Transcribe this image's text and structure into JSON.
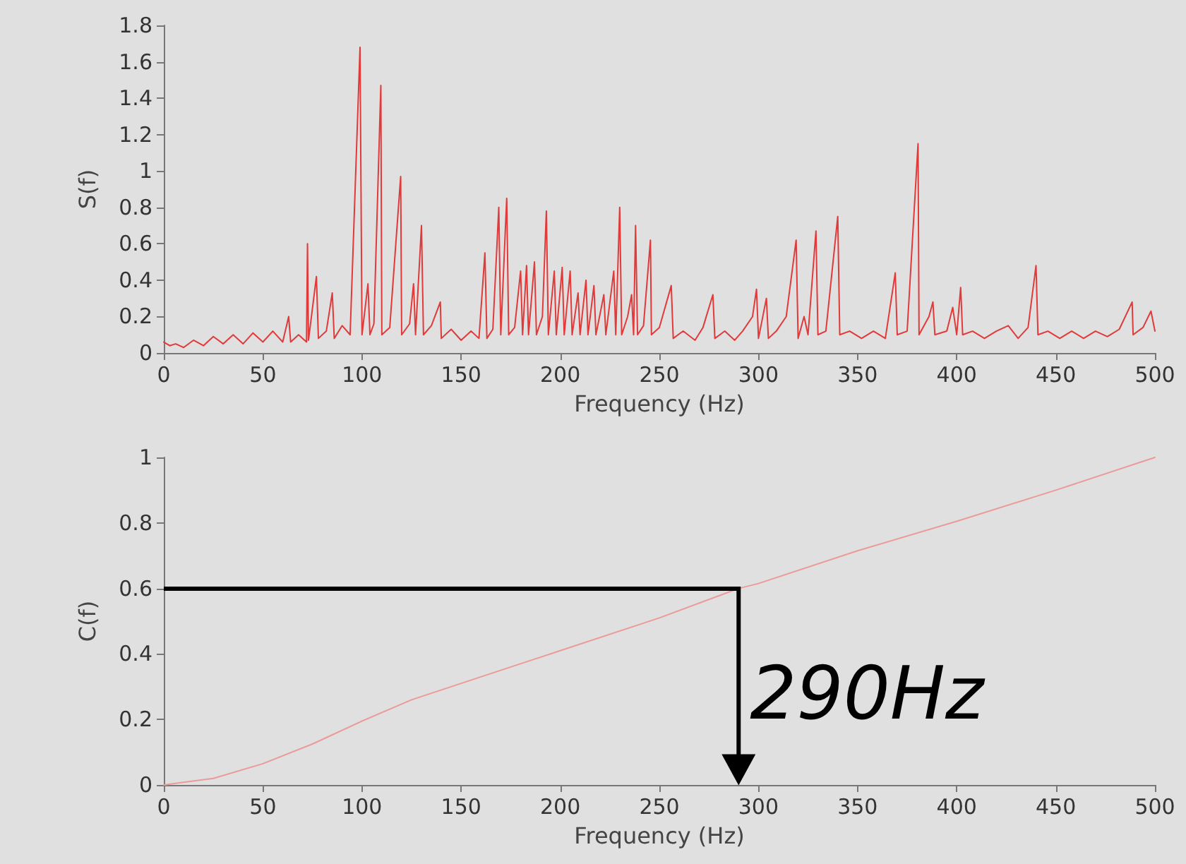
{
  "chart_data": [
    {
      "type": "line",
      "ylabel": "S(f)",
      "xlabel": "Frequency (Hz)",
      "xlim": [
        0,
        500
      ],
      "xticks": [
        0,
        50,
        100,
        150,
        200,
        250,
        300,
        350,
        400,
        450,
        500
      ],
      "ylim": [
        0,
        1.8
      ],
      "yticks": [
        0,
        0.2,
        0.4,
        0.6,
        0.8,
        1,
        1.2,
        1.4,
        1.6,
        1.8
      ],
      "grid": false,
      "marker": "none",
      "x": [
        0,
        3,
        6,
        10,
        15,
        20,
        25,
        30,
        35,
        40,
        45,
        50,
        55,
        60,
        63,
        64,
        68,
        72,
        72.5,
        73,
        77,
        78,
        82,
        85,
        86,
        90,
        94,
        99,
        100,
        103,
        104,
        106,
        109.5,
        110,
        114,
        119.5,
        120,
        124,
        126,
        127,
        130,
        131,
        135,
        139.5,
        140,
        145,
        150,
        155,
        159,
        162,
        163,
        166,
        169,
        170,
        173,
        174,
        177,
        180,
        181,
        183,
        184,
        187,
        188,
        191,
        193,
        194,
        197,
        198,
        201,
        202,
        205,
        206,
        209,
        210,
        213,
        214,
        217,
        218,
        222,
        223,
        227,
        228,
        230,
        231,
        234,
        236,
        237,
        238,
        239,
        242,
        245.5,
        246,
        250,
        256,
        257,
        262,
        268,
        272,
        277,
        278,
        283,
        288,
        292,
        297,
        299,
        300,
        304,
        305,
        309,
        314,
        319,
        320,
        323,
        325,
        329,
        330,
        334,
        340,
        341,
        346,
        352,
        358,
        364,
        369,
        370,
        375,
        380.5,
        381,
        386,
        388,
        389,
        395,
        398,
        400,
        402,
        403,
        408,
        414,
        420,
        426,
        431,
        436,
        440,
        441,
        446,
        452,
        458,
        464,
        470,
        476,
        482,
        488.5,
        489,
        494,
        498,
        500
      ],
      "series": [
        {
          "color": "#e03a3a",
          "values": [
            0.06,
            0.04,
            0.05,
            0.03,
            0.07,
            0.04,
            0.09,
            0.05,
            0.1,
            0.05,
            0.11,
            0.06,
            0.12,
            0.06,
            0.2,
            0.06,
            0.1,
            0.06,
            0.6,
            0.07,
            0.42,
            0.08,
            0.12,
            0.33,
            0.08,
            0.15,
            0.1,
            1.68,
            0.1,
            0.38,
            0.1,
            0.16,
            1.47,
            0.1,
            0.14,
            0.97,
            0.1,
            0.16,
            0.38,
            0.1,
            0.7,
            0.1,
            0.15,
            0.28,
            0.08,
            0.13,
            0.07,
            0.12,
            0.08,
            0.55,
            0.08,
            0.13,
            0.8,
            0.1,
            0.85,
            0.1,
            0.14,
            0.45,
            0.1,
            0.48,
            0.1,
            0.5,
            0.1,
            0.2,
            0.78,
            0.1,
            0.45,
            0.1,
            0.47,
            0.1,
            0.45,
            0.1,
            0.33,
            0.1,
            0.4,
            0.1,
            0.37,
            0.1,
            0.32,
            0.1,
            0.45,
            0.1,
            0.8,
            0.1,
            0.2,
            0.32,
            0.1,
            0.7,
            0.1,
            0.15,
            0.62,
            0.1,
            0.14,
            0.37,
            0.08,
            0.12,
            0.07,
            0.14,
            0.32,
            0.08,
            0.12,
            0.07,
            0.12,
            0.2,
            0.35,
            0.08,
            0.3,
            0.08,
            0.12,
            0.2,
            0.62,
            0.08,
            0.2,
            0.1,
            0.67,
            0.1,
            0.12,
            0.75,
            0.1,
            0.12,
            0.08,
            0.12,
            0.08,
            0.44,
            0.1,
            0.12,
            1.15,
            0.1,
            0.2,
            0.28,
            0.1,
            0.12,
            0.25,
            0.1,
            0.36,
            0.1,
            0.12,
            0.08,
            0.12,
            0.15,
            0.08,
            0.14,
            0.48,
            0.1,
            0.12,
            0.08,
            0.12,
            0.08,
            0.12,
            0.09,
            0.13,
            0.28,
            0.1,
            0.14,
            0.23,
            0.12
          ]
        }
      ]
    },
    {
      "type": "line",
      "ylabel": "C(f)",
      "xlabel": "Frequency (Hz)",
      "xlim": [
        0,
        500
      ],
      "xticks": [
        0,
        50,
        100,
        150,
        200,
        250,
        300,
        350,
        400,
        450,
        500
      ],
      "ylim": [
        0,
        1
      ],
      "yticks": [
        0,
        0.2,
        0.4,
        0.6,
        0.8,
        1
      ],
      "grid": false,
      "marker": "none",
      "x": [
        0,
        25,
        50,
        75,
        100,
        125,
        150,
        200,
        250,
        290,
        300,
        350,
        400,
        450,
        500
      ],
      "series": [
        {
          "color": "#eb9a9a",
          "values": [
            0,
            0.02,
            0.065,
            0.125,
            0.195,
            0.26,
            0.31,
            0.41,
            0.51,
            0.6,
            0.615,
            0.715,
            0.805,
            0.9,
            1
          ]
        }
      ],
      "annotations": [
        {
          "text": "290Hz",
          "x": 290,
          "y": 0.6
        }
      ]
    }
  ]
}
